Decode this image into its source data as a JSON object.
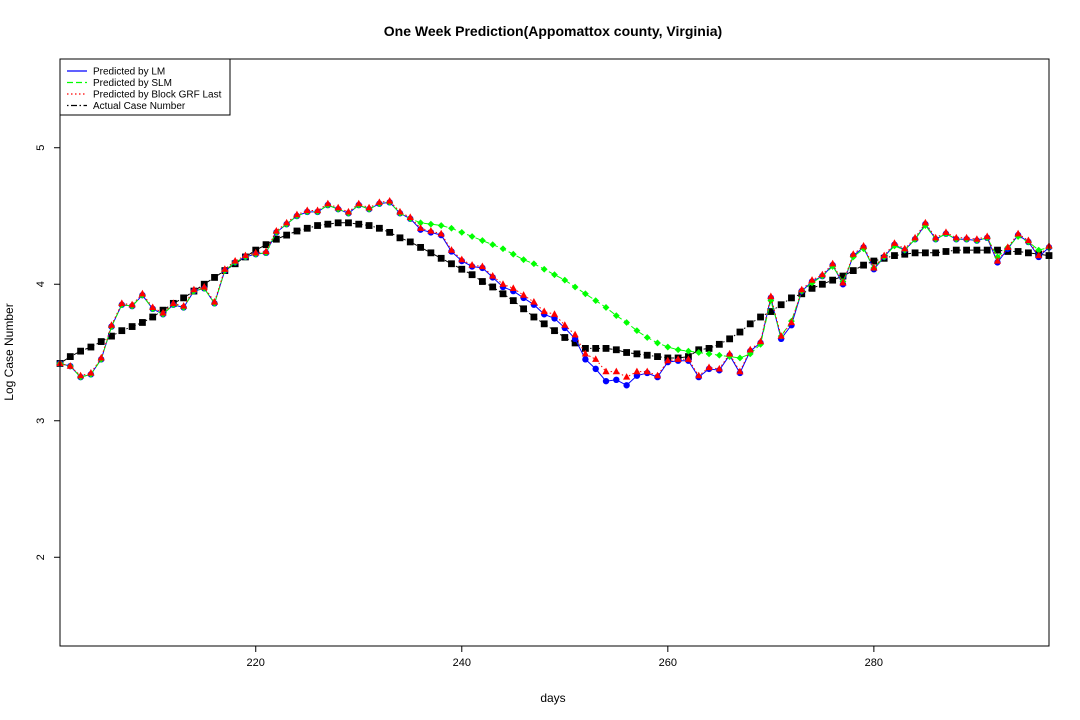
{
  "chart_data": {
    "type": "line",
    "title": "One Week Prediction(Appomattox county, Virginia)",
    "xlabel": "days",
    "ylabel": "Log Case Number",
    "xlim": [
      201,
      297
    ],
    "ylim": [
      1.35,
      5.65
    ],
    "xticks": [
      220,
      240,
      260,
      280
    ],
    "yticks": [
      2,
      3,
      4,
      5
    ],
    "legend_position": "top-left",
    "x": [
      201,
      202,
      203,
      204,
      205,
      206,
      207,
      208,
      209,
      210,
      211,
      212,
      213,
      214,
      215,
      216,
      217,
      218,
      219,
      220,
      221,
      222,
      223,
      224,
      225,
      226,
      227,
      228,
      229,
      230,
      231,
      232,
      233,
      234,
      235,
      236,
      237,
      238,
      239,
      240,
      241,
      242,
      243,
      244,
      245,
      246,
      247,
      248,
      249,
      250,
      251,
      252,
      253,
      254,
      255,
      256,
      257,
      258,
      259,
      260,
      261,
      262,
      263,
      264,
      265,
      266,
      267,
      268,
      269,
      270,
      271,
      272,
      273,
      274,
      275,
      276,
      277,
      278,
      279,
      280,
      281,
      282,
      283,
      284,
      285,
      286,
      287,
      288,
      289,
      290,
      291,
      292,
      293,
      294,
      295,
      296,
      297
    ],
    "series": [
      {
        "name": "Predicted by LM",
        "color": "#0000ff",
        "line_style": "solid",
        "marker": "circle",
        "values": [
          3.42,
          3.4,
          3.32,
          3.34,
          3.45,
          3.69,
          3.85,
          3.84,
          3.92,
          3.82,
          3.78,
          3.85,
          3.83,
          3.95,
          3.97,
          3.86,
          4.1,
          4.16,
          4.2,
          4.22,
          4.23,
          4.38,
          4.44,
          4.5,
          4.53,
          4.53,
          4.58,
          4.55,
          4.52,
          4.58,
          4.55,
          4.59,
          4.6,
          4.52,
          4.48,
          4.4,
          4.38,
          4.36,
          4.24,
          4.17,
          4.13,
          4.12,
          4.05,
          3.98,
          3.95,
          3.9,
          3.85,
          3.78,
          3.75,
          3.68,
          3.6,
          3.45,
          3.38,
          3.29,
          3.3,
          3.26,
          3.33,
          3.35,
          3.32,
          3.43,
          3.44,
          3.44,
          3.32,
          3.38,
          3.37,
          3.48,
          3.35,
          3.51,
          3.57,
          3.9,
          3.6,
          3.7,
          3.95,
          4.02,
          4.06,
          4.14,
          4.0,
          4.21,
          4.27,
          4.11,
          4.2,
          4.29,
          4.25,
          4.33,
          4.44,
          4.33,
          4.37,
          4.33,
          4.33,
          4.32,
          4.34,
          4.16,
          4.26,
          4.36,
          4.31,
          4.2,
          4.27
        ]
      },
      {
        "name": "Predicted by SLM",
        "color": "#00ff00",
        "line_style": "dashed",
        "marker": "diamond",
        "values": [
          3.42,
          3.4,
          3.32,
          3.34,
          3.45,
          3.69,
          3.85,
          3.84,
          3.92,
          3.82,
          3.78,
          3.85,
          3.83,
          3.95,
          3.97,
          3.86,
          4.1,
          4.16,
          4.2,
          4.22,
          4.23,
          4.38,
          4.44,
          4.5,
          4.53,
          4.53,
          4.58,
          4.55,
          4.52,
          4.58,
          4.55,
          4.59,
          4.6,
          4.52,
          4.48,
          4.45,
          4.44,
          4.43,
          4.41,
          4.38,
          4.35,
          4.32,
          4.29,
          4.26,
          4.22,
          4.18,
          4.15,
          4.11,
          4.07,
          4.03,
          3.98,
          3.93,
          3.88,
          3.83,
          3.77,
          3.72,
          3.66,
          3.61,
          3.57,
          3.54,
          3.52,
          3.51,
          3.5,
          3.49,
          3.48,
          3.47,
          3.46,
          3.49,
          3.56,
          3.88,
          3.62,
          3.73,
          3.95,
          4.01,
          4.06,
          4.13,
          4.02,
          4.2,
          4.26,
          4.12,
          4.2,
          4.28,
          4.25,
          4.33,
          4.43,
          4.33,
          4.37,
          4.33,
          4.33,
          4.32,
          4.34,
          4.2,
          4.27,
          4.35,
          4.31,
          4.25,
          4.27
        ]
      },
      {
        "name": "Predicted by Block GRF Last",
        "color": "#ff0000",
        "line_style": "dotted",
        "marker": "triangle",
        "values": [
          3.42,
          3.4,
          3.33,
          3.35,
          3.46,
          3.7,
          3.86,
          3.85,
          3.93,
          3.83,
          3.79,
          3.86,
          3.84,
          3.96,
          3.98,
          3.87,
          4.11,
          4.17,
          4.21,
          4.23,
          4.24,
          4.39,
          4.45,
          4.51,
          4.54,
          4.54,
          4.59,
          4.56,
          4.53,
          4.59,
          4.56,
          4.6,
          4.61,
          4.53,
          4.49,
          4.41,
          4.39,
          4.37,
          4.25,
          4.18,
          4.14,
          4.13,
          4.06,
          4.0,
          3.97,
          3.92,
          3.87,
          3.8,
          3.78,
          3.7,
          3.63,
          3.49,
          3.45,
          3.36,
          3.36,
          3.32,
          3.36,
          3.36,
          3.33,
          3.44,
          3.45,
          3.45,
          3.33,
          3.39,
          3.38,
          3.49,
          3.36,
          3.52,
          3.58,
          3.91,
          3.62,
          3.72,
          3.96,
          4.03,
          4.07,
          4.15,
          4.01,
          4.22,
          4.28,
          4.12,
          4.21,
          4.3,
          4.26,
          4.34,
          4.45,
          4.34,
          4.38,
          4.34,
          4.34,
          4.33,
          4.35,
          4.17,
          4.27,
          4.37,
          4.32,
          4.21,
          4.28
        ]
      },
      {
        "name": "Actual Case Number",
        "color": "#000000",
        "line_style": "dotdash",
        "marker": "square",
        "values": [
          3.42,
          3.47,
          3.51,
          3.54,
          3.58,
          3.62,
          3.66,
          3.69,
          3.72,
          3.76,
          3.81,
          3.86,
          3.9,
          3.95,
          4.0,
          4.05,
          4.1,
          4.15,
          4.2,
          4.25,
          4.29,
          4.33,
          4.36,
          4.39,
          4.41,
          4.43,
          4.44,
          4.45,
          4.45,
          4.44,
          4.43,
          4.41,
          4.38,
          4.34,
          4.31,
          4.27,
          4.23,
          4.19,
          4.15,
          4.11,
          4.07,
          4.02,
          3.98,
          3.93,
          3.88,
          3.82,
          3.76,
          3.71,
          3.66,
          3.61,
          3.57,
          3.53,
          3.53,
          3.53,
          3.52,
          3.5,
          3.49,
          3.48,
          3.47,
          3.46,
          3.46,
          3.47,
          3.52,
          3.53,
          3.56,
          3.6,
          3.65,
          3.71,
          3.76,
          3.8,
          3.85,
          3.9,
          3.93,
          3.97,
          4.0,
          4.03,
          4.06,
          4.1,
          4.14,
          4.17,
          4.19,
          4.21,
          4.22,
          4.23,
          4.23,
          4.23,
          4.24,
          4.25,
          4.25,
          4.25,
          4.25,
          4.25,
          4.24,
          4.24,
          4.23,
          4.22,
          4.21
        ]
      }
    ]
  }
}
